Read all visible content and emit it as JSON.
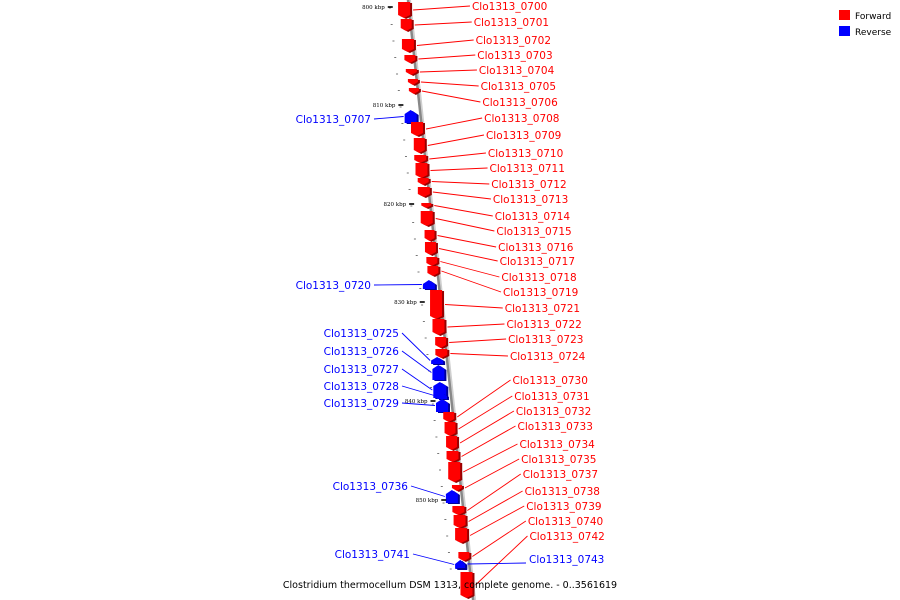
{
  "caption": "Clostridium thermocellum DSM 1313, complete genome. - 0..3561619",
  "colors": {
    "forward": "#ff0000",
    "reverse": "#0000ff",
    "backbone": "#888888"
  },
  "legend": [
    {
      "label": "Forward",
      "strand": "forward"
    },
    {
      "label": "Reverse",
      "strand": "reverse"
    }
  ],
  "kbp_labels": [
    "800 kbp",
    "810 kbp",
    "820 kbp",
    "830 kbp",
    "840 kbp",
    "850 kbp"
  ],
  "genes": [
    {
      "id": "Clo1313_0700",
      "strand": "forward"
    },
    {
      "id": "Clo1313_0701",
      "strand": "forward"
    },
    {
      "id": "Clo1313_0702",
      "strand": "forward"
    },
    {
      "id": "Clo1313_0703",
      "strand": "forward"
    },
    {
      "id": "Clo1313_0704",
      "strand": "forward"
    },
    {
      "id": "Clo1313_0705",
      "strand": "forward"
    },
    {
      "id": "Clo1313_0706",
      "strand": "forward"
    },
    {
      "id": "Clo1313_0707",
      "strand": "reverse"
    },
    {
      "id": "Clo1313_0708",
      "strand": "forward"
    },
    {
      "id": "Clo1313_0709",
      "strand": "forward"
    },
    {
      "id": "Clo1313_0710",
      "strand": "forward"
    },
    {
      "id": "Clo1313_0711",
      "strand": "forward"
    },
    {
      "id": "Clo1313_0712",
      "strand": "forward"
    },
    {
      "id": "Clo1313_0713",
      "strand": "forward"
    },
    {
      "id": "Clo1313_0714",
      "strand": "forward"
    },
    {
      "id": "Clo1313_0715",
      "strand": "forward"
    },
    {
      "id": "Clo1313_0716",
      "strand": "forward"
    },
    {
      "id": "Clo1313_0717",
      "strand": "forward"
    },
    {
      "id": "Clo1313_0718",
      "strand": "forward"
    },
    {
      "id": "Clo1313_0719",
      "strand": "forward"
    },
    {
      "id": "Clo1313_0720",
      "strand": "reverse"
    },
    {
      "id": "Clo1313_0721",
      "strand": "forward"
    },
    {
      "id": "Clo1313_0722",
      "strand": "forward"
    },
    {
      "id": "Clo1313_0723",
      "strand": "forward"
    },
    {
      "id": "Clo1313_0724",
      "strand": "forward"
    },
    {
      "id": "Clo1313_0725",
      "strand": "reverse"
    },
    {
      "id": "Clo1313_0726",
      "strand": "reverse"
    },
    {
      "id": "Clo1313_0727",
      "strand": "reverse"
    },
    {
      "id": "Clo1313_0728",
      "strand": "reverse"
    },
    {
      "id": "Clo1313_0729",
      "strand": "reverse"
    },
    {
      "id": "Clo1313_0730",
      "strand": "forward"
    },
    {
      "id": "Clo1313_0731",
      "strand": "forward"
    },
    {
      "id": "Clo1313_0732",
      "strand": "forward"
    },
    {
      "id": "Clo1313_0733",
      "strand": "forward"
    },
    {
      "id": "Clo1313_0734",
      "strand": "forward"
    },
    {
      "id": "Clo1313_0735",
      "strand": "forward"
    },
    {
      "id": "Clo1313_0736",
      "strand": "reverse"
    },
    {
      "id": "Clo1313_0737",
      "strand": "forward"
    },
    {
      "id": "Clo1313_0738",
      "strand": "forward"
    },
    {
      "id": "Clo1313_0739",
      "strand": "forward"
    },
    {
      "id": "Clo1313_0740",
      "strand": "forward"
    },
    {
      "id": "Clo1313_0741",
      "strand": "reverse"
    },
    {
      "id": "Clo1313_0742",
      "strand": "forward"
    },
    {
      "id": "Clo1313_0743",
      "strand": "reverse"
    }
  ]
}
